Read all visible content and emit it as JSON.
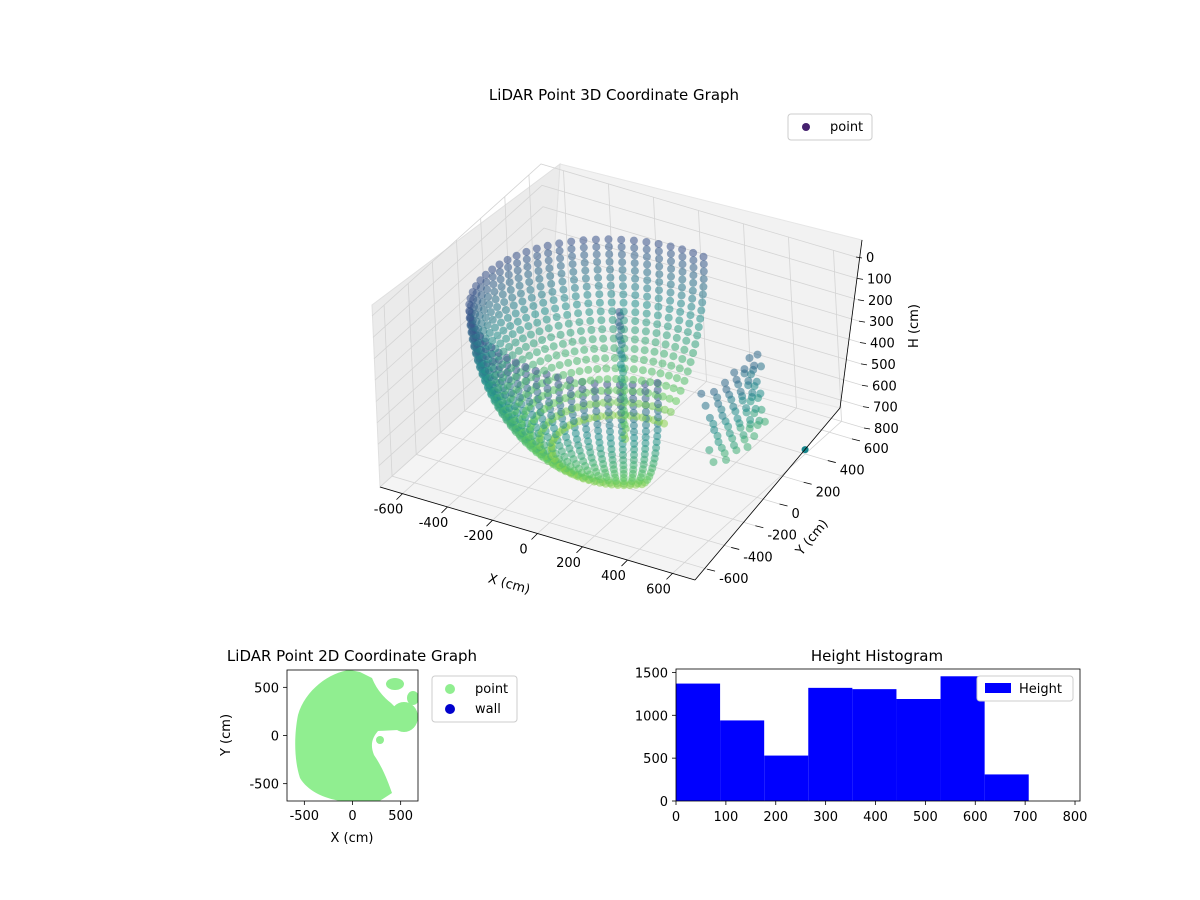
{
  "chart_data": [
    {
      "type": "scatter",
      "projection": "3d",
      "title": "LiDAR Point 3D Coordinate Graph",
      "xlabel": "X (cm)",
      "ylabel": "Y (cm)",
      "zlabel": "H (cm)",
      "xlim": [
        -700,
        700
      ],
      "ylim": [
        -700,
        700
      ],
      "zlim": [
        800,
        0
      ],
      "xticks": [
        "-600",
        "-400",
        "-200",
        "0",
        "200",
        "400",
        "600"
      ],
      "yticks": [
        "-600",
        "-400",
        "-200",
        "0",
        "200",
        "400",
        "600"
      ],
      "zticks": [
        "0",
        "100",
        "200",
        "300",
        "400",
        "500",
        "600",
        "700",
        "800"
      ],
      "z_inverted": true,
      "grid": true,
      "colormap": "viridis",
      "legend": {
        "placement": "top-right",
        "entries": [
          {
            "label": "point",
            "color": "#45216e"
          }
        ]
      },
      "series": [
        {
          "name": "point",
          "description_shape": "hemispherical dome of scan rings, x -600..500, y -500..600, h 100..800",
          "outlier": {
            "x": 600,
            "y": 400,
            "h": 780
          }
        }
      ]
    },
    {
      "type": "scatter",
      "title": "LiDAR Point 2D Coordinate Graph",
      "xlabel": "X (cm)",
      "ylabel": "Y (cm)",
      "xlim": [
        -680,
        680
      ],
      "ylim": [
        -680,
        680
      ],
      "xticks": [
        "-500",
        "0",
        "500"
      ],
      "yticks": [
        "-500",
        "0",
        "500"
      ],
      "legend": {
        "placement": "outside-right",
        "entries": [
          {
            "label": "point",
            "color": "#90ee90"
          },
          {
            "label": "wall",
            "color": "#0000cd"
          }
        ]
      },
      "series": [
        {
          "name": "point",
          "color": "#90ee90",
          "region": "half-disk radius ~600 centred at origin covering x -600..250, with scattered blobs x 250..600"
        },
        {
          "name": "wall",
          "color": "#0000cd",
          "values": []
        }
      ]
    },
    {
      "type": "bar",
      "subtype": "histogram",
      "title": "Height Histogram",
      "xlim": [
        0,
        810
      ],
      "ylim": [
        0,
        1540
      ],
      "xticks": [
        "0",
        "100",
        "200",
        "300",
        "400",
        "500",
        "600",
        "700",
        "800"
      ],
      "yticks": [
        "0",
        "500",
        "1000",
        "1500"
      ],
      "bin_edges": [
        0,
        88.4,
        176.8,
        265.2,
        353.6,
        442,
        530.4,
        618.8,
        707.2
      ],
      "values": [
        1370,
        940,
        530,
        1320,
        1305,
        1190,
        1455,
        310
      ],
      "color": "#0000ff",
      "legend": {
        "placement": "top-right",
        "entries": [
          {
            "label": "Height",
            "color": "#0000ff"
          }
        ]
      }
    }
  ]
}
